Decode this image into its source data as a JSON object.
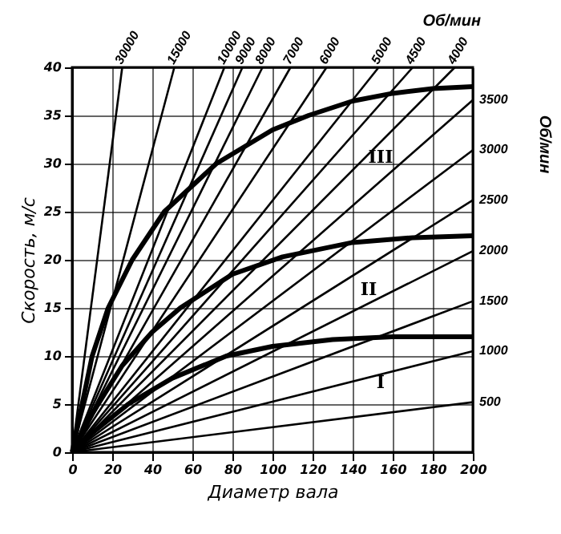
{
  "chart_data": {
    "type": "line",
    "xlabel": "Диаметр вала",
    "ylabel": "Скорость, м/с",
    "y2label": "Об/мин",
    "xlim": [
      0,
      200
    ],
    "ylim": [
      0,
      40
    ],
    "xticks": [
      0,
      20,
      40,
      60,
      80,
      100,
      120,
      140,
      160,
      180,
      200
    ],
    "yticks": [
      0,
      5,
      10,
      15,
      20,
      25,
      30,
      35,
      40
    ],
    "grid": true,
    "legend": false,
    "series": [
      {
        "name": "500",
        "color": "#000000",
        "x": [
          0,
          200
        ],
        "values": [
          0,
          5.2
        ]
      },
      {
        "name": "1000",
        "color": "#000000",
        "x": [
          0,
          200
        ],
        "values": [
          0,
          10.5
        ]
      },
      {
        "name": "1500",
        "color": "#000000",
        "x": [
          0,
          200
        ],
        "values": [
          0,
          15.7
        ]
      },
      {
        "name": "2000",
        "color": "#000000",
        "x": [
          0,
          200
        ],
        "values": [
          0,
          20.9
        ]
      },
      {
        "name": "2500",
        "color": "#000000",
        "x": [
          0,
          200
        ],
        "values": [
          0,
          26.2
        ]
      },
      {
        "name": "3000",
        "color": "#000000",
        "x": [
          0,
          200
        ],
        "values": [
          0,
          31.4
        ]
      },
      {
        "name": "3500",
        "color": "#000000",
        "x": [
          0,
          200
        ],
        "values": [
          0,
          36.6
        ]
      },
      {
        "name": "4000",
        "color": "#000000",
        "x": [
          0,
          191
        ],
        "values": [
          0,
          40
        ]
      },
      {
        "name": "4500",
        "color": "#000000",
        "x": [
          0,
          170
        ],
        "values": [
          0,
          40
        ]
      },
      {
        "name": "5000",
        "color": "#000000",
        "x": [
          0,
          153
        ],
        "values": [
          0,
          40
        ]
      },
      {
        "name": "6000",
        "color": "#000000",
        "x": [
          0,
          127
        ],
        "values": [
          0,
          40
        ]
      },
      {
        "name": "7000",
        "color": "#000000",
        "x": [
          0,
          109
        ],
        "values": [
          0,
          40
        ]
      },
      {
        "name": "8000",
        "color": "#000000",
        "x": [
          0,
          95
        ],
        "values": [
          0,
          40
        ]
      },
      {
        "name": "9000",
        "color": "#000000",
        "x": [
          0,
          85
        ],
        "values": [
          0,
          40
        ]
      },
      {
        "name": "10000",
        "color": "#000000",
        "x": [
          0,
          76
        ],
        "values": [
          0,
          40
        ]
      },
      {
        "name": "15000",
        "color": "#000000",
        "x": [
          0,
          51
        ],
        "values": [
          0,
          40
        ]
      },
      {
        "name": "30000",
        "color": "#000000",
        "x": [
          0,
          25
        ],
        "values": [
          0,
          40
        ]
      },
      {
        "color": "#000000",
        "x": [
          0,
          10,
          18,
          30,
          46,
          72,
          100,
          118,
          140,
          160,
          180,
          200
        ],
        "values": [
          0,
          10,
          15,
          20,
          25,
          30,
          33.5,
          35,
          36.5,
          37.3,
          37.8,
          38
        ]
      },
      {
        "color": "#000000",
        "x": [
          0,
          10,
          25,
          40,
          54,
          80,
          105,
          140,
          170,
          200
        ],
        "values": [
          0,
          4,
          9,
          12.5,
          15,
          18.5,
          20.3,
          21.8,
          22.3,
          22.5
        ]
      },
      {
        "color": "#000000",
        "x": [
          0,
          10,
          28,
          50,
          77,
          100,
          130,
          160,
          200
        ],
        "values": [
          0,
          2,
          5,
          7.7,
          10,
          11,
          11.7,
          12,
          12
        ]
      }
    ],
    "annotations": [
      "III",
      "II",
      "I",
      "Об/мин"
    ]
  }
}
